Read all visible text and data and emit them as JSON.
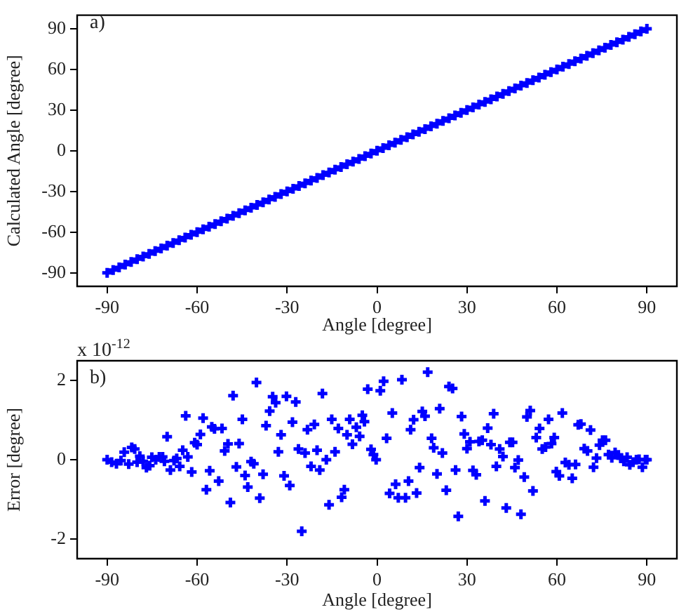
{
  "chart_data": [
    {
      "type": "scatter",
      "xlabel": "Angle [degree]",
      "ylabel": "Calculated Angle [degree]",
      "annotations": [
        "a)"
      ],
      "xlim": [
        -100,
        100
      ],
      "ylim": [
        -100,
        100
      ],
      "xticks": [
        -90,
        -60,
        -30,
        0,
        30,
        60,
        90
      ],
      "yticks": [
        -90,
        -60,
        -30,
        0,
        30,
        60,
        90
      ],
      "grid": false,
      "marker": "cross",
      "series": [
        {
          "color": "#0000ff",
          "x": [
            -90,
            -88,
            -86,
            -84,
            -82,
            -80,
            -78,
            -76,
            -74,
            -72,
            -70,
            -68,
            -66,
            -64,
            -62,
            -60,
            -58,
            -56,
            -54,
            -52,
            -50,
            -48,
            -46,
            -44,
            -42,
            -40,
            -38,
            -36,
            -34,
            -32,
            -30,
            -28,
            -26,
            -24,
            -22,
            -20,
            -18,
            -16,
            -14,
            -12,
            -10,
            -8,
            -6,
            -4,
            -2,
            0,
            2,
            4,
            6,
            8,
            10,
            12,
            14,
            16,
            18,
            20,
            22,
            24,
            26,
            28,
            30,
            32,
            34,
            36,
            38,
            40,
            42,
            44,
            46,
            48,
            50,
            52,
            54,
            56,
            58,
            60,
            62,
            64,
            66,
            68,
            70,
            72,
            74,
            76,
            78,
            80,
            82,
            84,
            86,
            88,
            90
          ],
          "values": [
            -90,
            -88,
            -86,
            -84,
            -82,
            -80,
            -78,
            -76,
            -74,
            -72,
            -70,
            -68,
            -66,
            -64,
            -62,
            -60,
            -58,
            -56,
            -54,
            -52,
            -50,
            -48,
            -46,
            -44,
            -42,
            -40,
            -38,
            -36,
            -34,
            -32,
            -30,
            -28,
            -26,
            -24,
            -22,
            -20,
            -18,
            -16,
            -14,
            -12,
            -10,
            -8,
            -6,
            -4,
            -2,
            0,
            2,
            4,
            6,
            8,
            10,
            12,
            14,
            16,
            18,
            20,
            22,
            24,
            26,
            28,
            30,
            32,
            34,
            36,
            38,
            40,
            42,
            44,
            46,
            48,
            50,
            52,
            54,
            56,
            58,
            60,
            62,
            64,
            66,
            68,
            70,
            72,
            74,
            76,
            78,
            80,
            82,
            84,
            86,
            88,
            90
          ]
        }
      ]
    },
    {
      "type": "scatter",
      "xlabel": "Angle [degree]",
      "ylabel": "Error [degree]",
      "annotations": [
        "b)",
        "x 10$^{-12}$"
      ],
      "xlim": [
        -100,
        100
      ],
      "ylim": [
        -2.5,
        2.5
      ],
      "xticks": [
        -90,
        -60,
        -30,
        0,
        30,
        60,
        90
      ],
      "yticks": [
        -2,
        0,
        2
      ],
      "grid": false,
      "marker": "cross",
      "series": [
        {
          "color": "#0000ff",
          "x": [
            -90,
            -88.5,
            -86.9,
            -85.4,
            -84.3,
            -82.8,
            -81.8,
            -80.8,
            -80,
            -79.1,
            -78,
            -76.9,
            -75.8,
            -75.1,
            -73.8,
            -72.6,
            -71.5,
            -70.9,
            -70,
            -68.9,
            -67.7,
            -66.8,
            -65.8,
            -64.8,
            -63.8,
            -63.1,
            -61.8,
            -60.8,
            -60,
            -58.9,
            -58,
            -56.9,
            -55.8,
            -55.1,
            -54.2,
            -52.8,
            -51.7,
            -50.8,
            -49.7,
            -48.9,
            -48,
            -46.9,
            -46,
            -44.9,
            -44,
            -43.1,
            -42,
            -41.1,
            -40.2,
            -39.1,
            -38,
            -37,
            -35.8,
            -34.8,
            -33.8,
            -32.9,
            -32,
            -31,
            -30.2,
            -29.1,
            -28.2,
            -27.1,
            -26.2,
            -25.1,
            -24,
            -23.2,
            -22,
            -20.9,
            -20,
            -19.1,
            -18.2,
            -16.9,
            -16,
            -15.1,
            -14,
            -12.9,
            -11.8,
            -10.9,
            -10,
            -9.1,
            -8.2,
            -6.9,
            -5.8,
            -4.9,
            -4.2,
            -3.1,
            -2,
            -1.2,
            -0.3,
            1.1,
            2.2,
            3.2,
            4.2,
            5.1,
            6.2,
            7.1,
            8.3,
            9.5,
            10.5,
            11.2,
            12.2,
            13.2,
            14.2,
            15.1,
            16,
            16.9,
            18.2,
            18.9,
            20,
            20.9,
            21.8,
            23.1,
            24,
            25.2,
            26.2,
            27.1,
            28.2,
            29.1,
            30,
            31,
            32,
            33.1,
            34,
            35.1,
            36,
            36.9,
            38,
            38.9,
            39.8,
            40.9,
            42,
            43.1,
            44.3,
            45.2,
            46,
            47.1,
            48,
            49.1,
            50,
            51.1,
            52,
            53.1,
            54.2,
            55.1,
            56.2,
            57.2,
            58.2,
            59.1,
            59.8,
            60.8,
            61.8,
            62.8,
            64,
            65.1,
            66.2,
            67.1,
            68,
            69.1,
            70.2,
            71.2,
            72.2,
            73.2,
            74.2,
            75.2,
            76.2,
            77.2,
            78.3,
            79.4,
            80.5,
            81.4,
            82.3,
            83.4,
            84.3,
            85.4,
            86.5,
            87.4,
            88.5,
            89.5,
            90
          ],
          "values": [
            0,
            -0.06,
            -0.1,
            -0.02,
            0.19,
            -0.11,
            0.31,
            0.27,
            -0.06,
            0.09,
            -0.04,
            -0.2,
            -0.15,
            0.06,
            0,
            0.07,
            0.07,
            -0.04,
            0.58,
            -0.26,
            -0.02,
            0.03,
            -0.17,
            0.24,
            1.11,
            0.07,
            -0.31,
            0.43,
            0.38,
            0.64,
            1.05,
            -0.76,
            -0.28,
            0.83,
            0.78,
            -0.54,
            0.79,
            0.22,
            0.4,
            -1.08,
            1.62,
            -0.18,
            0.41,
            1.02,
            -0.4,
            -0.69,
            -0.05,
            -0.1,
            1.95,
            -0.97,
            -0.37,
            0.86,
            1.23,
            1.59,
            1.44,
            0.2,
            0.63,
            -0.41,
            1.6,
            -0.65,
            0.95,
            1.46,
            0.27,
            -1.81,
            0.17,
            0.76,
            -0.17,
            0.89,
            0.24,
            -0.26,
            1.67,
            0,
            -1.14,
            1.02,
            0.2,
            0.79,
            -0.95,
            -0.76,
            0.63,
            1.02,
            0.39,
            0.82,
            0.59,
            1.12,
            0.96,
            1.78,
            0.26,
            0.13,
            0,
            1.74,
            1.98,
            0.54,
            -0.85,
            1.18,
            -0.62,
            -0.96,
            2.02,
            -0.96,
            -0.54,
            0.76,
            1.01,
            -0.84,
            -0.2,
            1.22,
            1.1,
            2.21,
            0.54,
            0.3,
            -0.36,
            1.29,
            0.17,
            -0.77,
            1.85,
            1.8,
            -0.26,
            -1.43,
            1.09,
            0.65,
            0.28,
            0.45,
            -0.27,
            -0.38,
            0.46,
            0.49,
            -1.04,
            0.8,
            0.38,
            1.16,
            -0.17,
            0.27,
            0.08,
            -1.22,
            0.44,
            0.44,
            -0.2,
            -0.01,
            -1.38,
            -0.44,
            1.08,
            1.24,
            -0.79,
            0.56,
            0.79,
            0.27,
            0.32,
            1.02,
            0.41,
            0.56,
            -0.3,
            -0.41,
            1.18,
            -0.07,
            -0.13,
            -0.47,
            -0.12,
            0.88,
            0.9,
            0.28,
            0.22,
            0.75,
            -0.19,
            0.04,
            0.37,
            0.49,
            0.49,
            0.13,
            0.05,
            0.18,
            0.12,
            0.04,
            -0.04,
            0.06,
            -0.13,
            -0.06,
            0,
            0.01,
            -0.19,
            0,
            0
          ]
        }
      ]
    }
  ]
}
